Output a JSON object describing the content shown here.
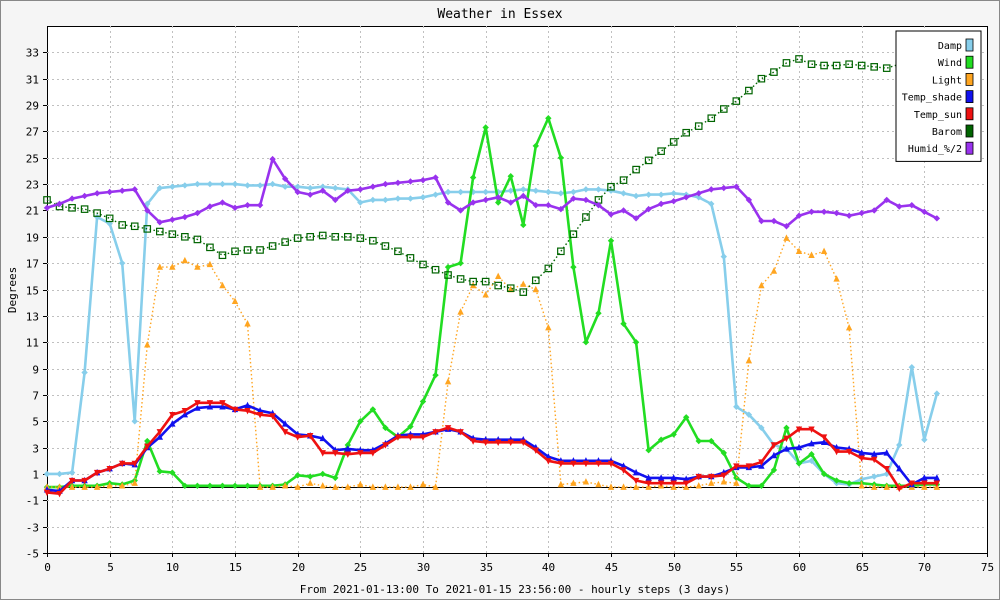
{
  "chart_data": {
    "type": "line",
    "title": "Weather in Essex",
    "xlabel": "From 2021-01-13:00 To 2021-01-15 23:56:00 - hourly steps (3 days)",
    "ylabel": "Degrees",
    "xlim": [
      0,
      75
    ],
    "ylim": [
      -5,
      35
    ],
    "xticks": [
      0,
      5,
      10,
      15,
      20,
      25,
      30,
      35,
      40,
      45,
      50,
      55,
      60,
      65,
      70,
      75
    ],
    "yticks": [
      -5,
      -3,
      -1,
      1,
      3,
      5,
      7,
      9,
      11,
      13,
      15,
      17,
      19,
      21,
      23,
      25,
      27,
      29,
      31,
      33
    ],
    "grid": true,
    "legend_position": "top-right",
    "series": [
      {
        "name": "Damp",
        "color": "#87ceeb",
        "style": "solid",
        "marker": "diamond",
        "values": [
          1.0,
          1.0,
          1.1,
          8.7,
          20.5,
          20.0,
          17.0,
          5.0,
          21.5,
          22.7,
          22.8,
          22.9,
          23.0,
          23.0,
          23.0,
          23.0,
          22.9,
          22.9,
          23.0,
          22.8,
          22.8,
          22.7,
          22.8,
          22.7,
          22.6,
          21.6,
          21.8,
          21.8,
          21.9,
          21.9,
          22.0,
          22.2,
          22.4,
          22.4,
          22.4,
          22.4,
          22.4,
          22.5,
          22.6,
          22.5,
          22.4,
          22.3,
          22.4,
          22.6,
          22.6,
          22.5,
          22.3,
          22.1,
          22.2,
          22.2,
          22.3,
          22.2,
          22.0,
          21.5,
          17.5,
          6.1,
          5.5,
          4.5,
          3.2,
          2.9,
          1.8,
          2.0,
          1.0,
          0.3,
          0.2,
          0.6,
          0.8,
          1.0,
          3.2,
          9.1,
          3.6,
          7.1
        ]
      },
      {
        "name": "Wind",
        "color": "#22dd22",
        "style": "solid",
        "marker": "diamond",
        "values": [
          0,
          0,
          0.1,
          0.1,
          0.1,
          0.3,
          0.2,
          0.5,
          3.5,
          1.2,
          1.1,
          0.1,
          0.1,
          0.1,
          0.1,
          0.1,
          0.1,
          0.1,
          0.1,
          0.2,
          0.9,
          0.8,
          1.0,
          0.7,
          3.2,
          5.0,
          5.9,
          4.5,
          3.8,
          4.6,
          6.5,
          8.5,
          16.7,
          17.0,
          23.5,
          27.3,
          21.6,
          23.6,
          19.9,
          25.9,
          28.0,
          25.0,
          16.7,
          11.0,
          13.2,
          18.7,
          12.4,
          11.0,
          2.8,
          3.6,
          4.0,
          5.3,
          3.5,
          3.5,
          2.6,
          0.7,
          0.1,
          0.1,
          1.3,
          4.5,
          1.8,
          2.5,
          1.0,
          0.5,
          0.3,
          0.3,
          0.2,
          0.1,
          0.1,
          0.1,
          0.2,
          0.2
        ]
      },
      {
        "name": "Light",
        "color": "#ffa520",
        "style": "dotted",
        "marker": "triangle",
        "values": [
          0,
          0,
          0,
          0,
          0,
          0.1,
          0.1,
          0.3,
          10.8,
          16.7,
          16.7,
          17.2,
          16.7,
          16.9,
          15.3,
          14.1,
          12.4,
          0,
          0,
          0.1,
          0,
          0.3,
          0.1,
          0,
          0,
          0.2,
          0,
          0,
          0,
          0,
          0.2,
          0,
          8.0,
          13.3,
          15.3,
          14.6,
          16.0,
          15.0,
          15.4,
          15.0,
          12.1,
          0.2,
          0.3,
          0.4,
          0.2,
          0,
          0,
          0,
          0,
          0.1,
          0,
          0,
          0.1,
          0.3,
          0.4,
          0.3,
          9.6,
          15.3,
          16.4,
          18.9,
          17.9,
          17.6,
          17.9,
          15.8,
          12.1,
          0.1,
          0,
          0,
          0,
          0,
          0,
          0
        ]
      },
      {
        "name": "Temp_shade",
        "color": "#1111ee",
        "style": "solid",
        "marker": "triangle",
        "values": [
          -0.2,
          -0.3,
          0.5,
          0.5,
          1.1,
          1.4,
          1.8,
          1.7,
          3.0,
          3.8,
          4.8,
          5.5,
          6.0,
          6.1,
          6.1,
          5.9,
          6.2,
          5.8,
          5.6,
          4.8,
          4.0,
          3.9,
          3.7,
          2.8,
          2.9,
          2.8,
          2.8,
          3.3,
          3.9,
          4.0,
          4.0,
          4.2,
          4.4,
          4.2,
          3.7,
          3.6,
          3.6,
          3.6,
          3.6,
          3.0,
          2.3,
          2.0,
          2.0,
          2.0,
          2.0,
          2.0,
          1.6,
          1.1,
          0.7,
          0.7,
          0.7,
          0.6,
          0.8,
          0.8,
          1.1,
          1.5,
          1.5,
          1.6,
          2.4,
          2.9,
          3.0,
          3.3,
          3.4,
          3.0,
          2.9,
          2.6,
          2.5,
          2.6,
          1.4,
          0.2,
          0.7,
          0.7
        ]
      },
      {
        "name": "Temp_sun",
        "color": "#ee1111",
        "style": "solid",
        "marker": "triangle-down",
        "values": [
          -0.4,
          -0.5,
          0.5,
          0.5,
          1.1,
          1.4,
          1.8,
          1.8,
          3.1,
          4.2,
          5.5,
          5.8,
          6.4,
          6.4,
          6.4,
          5.9,
          5.8,
          5.5,
          5.4,
          4.2,
          3.8,
          3.9,
          2.6,
          2.6,
          2.5,
          2.6,
          2.6,
          3.2,
          3.8,
          3.8,
          3.8,
          4.2,
          4.5,
          4.2,
          3.5,
          3.4,
          3.4,
          3.4,
          3.4,
          2.8,
          2.0,
          1.8,
          1.8,
          1.8,
          1.8,
          1.8,
          1.3,
          0.5,
          0.3,
          0.3,
          0.3,
          0.3,
          0.8,
          0.8,
          0.9,
          1.6,
          1.6,
          1.9,
          3.2,
          3.7,
          4.4,
          4.4,
          3.8,
          2.7,
          2.7,
          2.2,
          2.1,
          1.4,
          -0.1,
          0.3,
          0.3,
          0.3
        ]
      },
      {
        "name": "Barom",
        "color": "#006400",
        "style": "dotted",
        "marker": "square",
        "values": [
          21.8,
          21.3,
          21.2,
          21.1,
          20.8,
          20.4,
          19.9,
          19.8,
          19.6,
          19.4,
          19.2,
          19.0,
          18.8,
          18.2,
          17.6,
          17.9,
          18.0,
          18.0,
          18.3,
          18.6,
          18.9,
          19.0,
          19.1,
          19.0,
          19.0,
          18.9,
          18.7,
          18.3,
          17.9,
          17.4,
          16.9,
          16.5,
          16.1,
          15.8,
          15.6,
          15.6,
          15.3,
          15.1,
          14.8,
          15.7,
          16.6,
          17.9,
          19.2,
          20.5,
          21.8,
          22.8,
          23.3,
          24.1,
          24.8,
          25.5,
          26.2,
          26.9,
          27.4,
          28.0,
          28.7,
          29.3,
          30.1,
          31.0,
          31.5,
          32.2,
          32.5,
          32.1,
          32.0,
          32.0,
          32.1,
          32.0,
          31.9,
          31.8,
          32.1,
          31.8,
          31.7,
          31.5
        ]
      },
      {
        "name": "Humid_%/2",
        "color": "#9932ee",
        "style": "solid",
        "marker": "diamond",
        "values": [
          21.2,
          21.5,
          21.9,
          22.1,
          22.3,
          22.4,
          22.5,
          22.6,
          21.0,
          20.1,
          20.3,
          20.5,
          20.8,
          21.3,
          21.6,
          21.2,
          21.4,
          21.4,
          24.9,
          23.4,
          22.4,
          22.2,
          22.5,
          21.8,
          22.5,
          22.6,
          22.8,
          23.0,
          23.1,
          23.2,
          23.3,
          23.5,
          21.6,
          21.0,
          21.6,
          21.8,
          22.0,
          21.6,
          22.1,
          21.4,
          21.4,
          21.1,
          21.9,
          21.8,
          21.4,
          20.7,
          21.0,
          20.4,
          21.1,
          21.5,
          21.7,
          22.0,
          22.3,
          22.6,
          22.7,
          22.8,
          21.8,
          20.2,
          20.2,
          19.8,
          20.6,
          20.9,
          20.9,
          20.8,
          20.6,
          20.8,
          21.0,
          21.8,
          21.3,
          21.4,
          20.9,
          20.4
        ]
      }
    ]
  }
}
